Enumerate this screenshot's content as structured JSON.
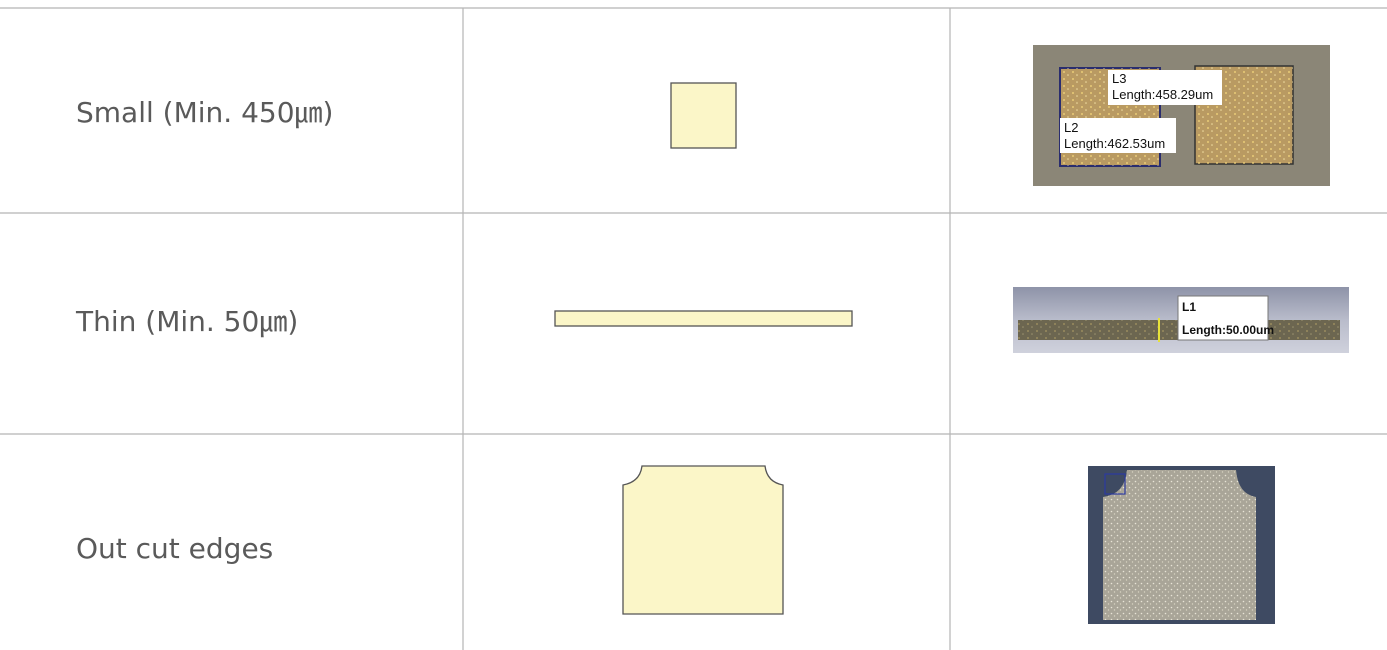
{
  "table": {
    "rows": [
      {
        "label": "Small (Min. 450㎛)",
        "photo": {
          "annotations": [
            {
              "id": "L3",
              "text": "Length:458.29um"
            },
            {
              "id": "L2",
              "text": "Length:462.53um"
            }
          ]
        }
      },
      {
        "label": "Thin (Min. 50㎛)",
        "photo": {
          "annotations": [
            {
              "id": "L1",
              "text": "Length:50.00um"
            }
          ]
        }
      },
      {
        "label": "Out cut edges"
      }
    ]
  }
}
